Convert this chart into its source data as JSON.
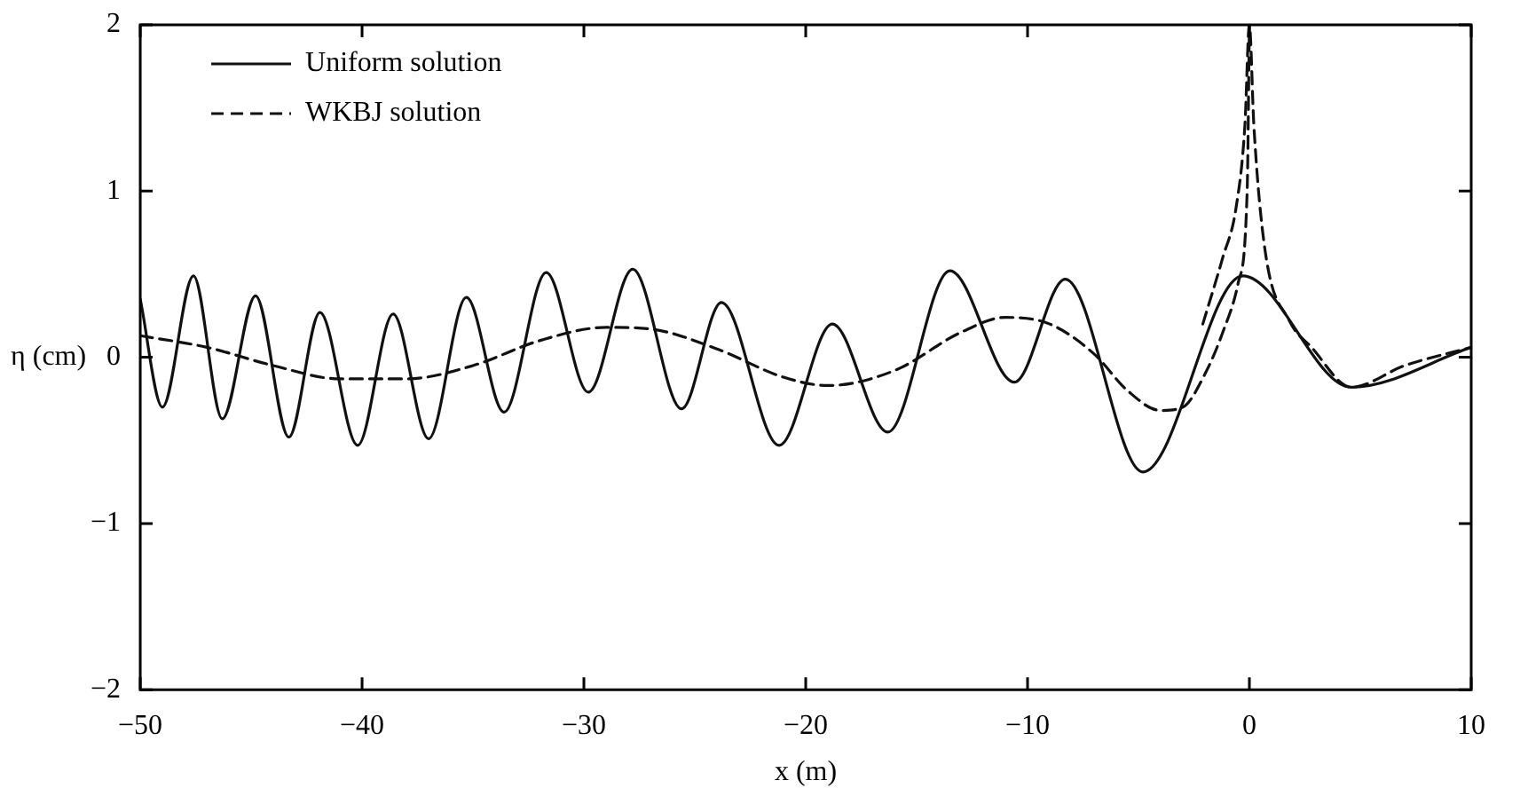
{
  "chart_data": {
    "type": "line",
    "xlabel": "x (m)",
    "ylabel": "η (cm)",
    "xlim": [
      -50,
      10
    ],
    "xticks": [
      -50,
      -40,
      -30,
      -20,
      -10,
      0,
      10
    ],
    "ylim": [
      -2,
      2
    ],
    "yticks": [
      -2,
      -1,
      0,
      1,
      2
    ],
    "grid": false,
    "legend": "top left",
    "marker": "none",
    "series": [
      {
        "name": "Uniform solution",
        "color": "#111111",
        "line_style": "solid",
        "x": [
          -50,
          -49,
          -47.6,
          -46.3,
          -44.8,
          -43.3,
          -41.9,
          -40.2,
          -38.6,
          -37,
          -35.3,
          -33.6,
          -31.7,
          -29.8,
          -27.8,
          -25.6,
          -23.8,
          -21.2,
          -18.8,
          -16.3,
          -13.5,
          -10.6,
          -8.3,
          -4.8,
          -0.3,
          4.6,
          10
        ],
        "values": [
          0.35,
          -0.3,
          0.49,
          -0.37,
          0.37,
          -0.48,
          0.27,
          -0.53,
          0.26,
          -0.49,
          0.36,
          -0.33,
          0.51,
          -0.21,
          0.53,
          -0.31,
          0.33,
          -0.53,
          0.2,
          -0.45,
          0.52,
          -0.15,
          0.47,
          -0.69,
          0.49,
          -0.18,
          0.06
        ]
      },
      {
        "name": "WKBJ solution",
        "color": "#111111",
        "line_style": "dashed",
        "x": [
          -50,
          -47,
          -44,
          -41,
          -38,
          -35,
          -32,
          -29,
          -27,
          -24,
          -21,
          -19,
          -16,
          -13,
          -11,
          -9,
          -7,
          -5.5,
          -4,
          -3,
          -2,
          -1.2,
          -0.5,
          -0.1,
          0
        ],
        "values": [
          0.13,
          0.06,
          -0.05,
          -0.13,
          -0.13,
          -0.05,
          0.1,
          0.18,
          0.17,
          0.05,
          -0.12,
          -0.17,
          -0.08,
          0.15,
          0.24,
          0.2,
          0.02,
          -0.2,
          -0.32,
          -0.3,
          -0.1,
          0.15,
          0.45,
          1,
          2
        ]
      },
      {
        "color": "#111111",
        "line_style": "dashed",
        "x": [
          -2.1,
          -1.2,
          -0.6,
          -0.2,
          0,
          0.2,
          0.7,
          1.8,
          2.8,
          4.6,
          7,
          10
        ],
        "values": [
          0.2,
          0.6,
          0.9,
          1.4,
          2,
          1.4,
          0.65,
          0.22,
          0.06,
          -0.18,
          -0.05,
          0.06
        ]
      }
    ]
  }
}
